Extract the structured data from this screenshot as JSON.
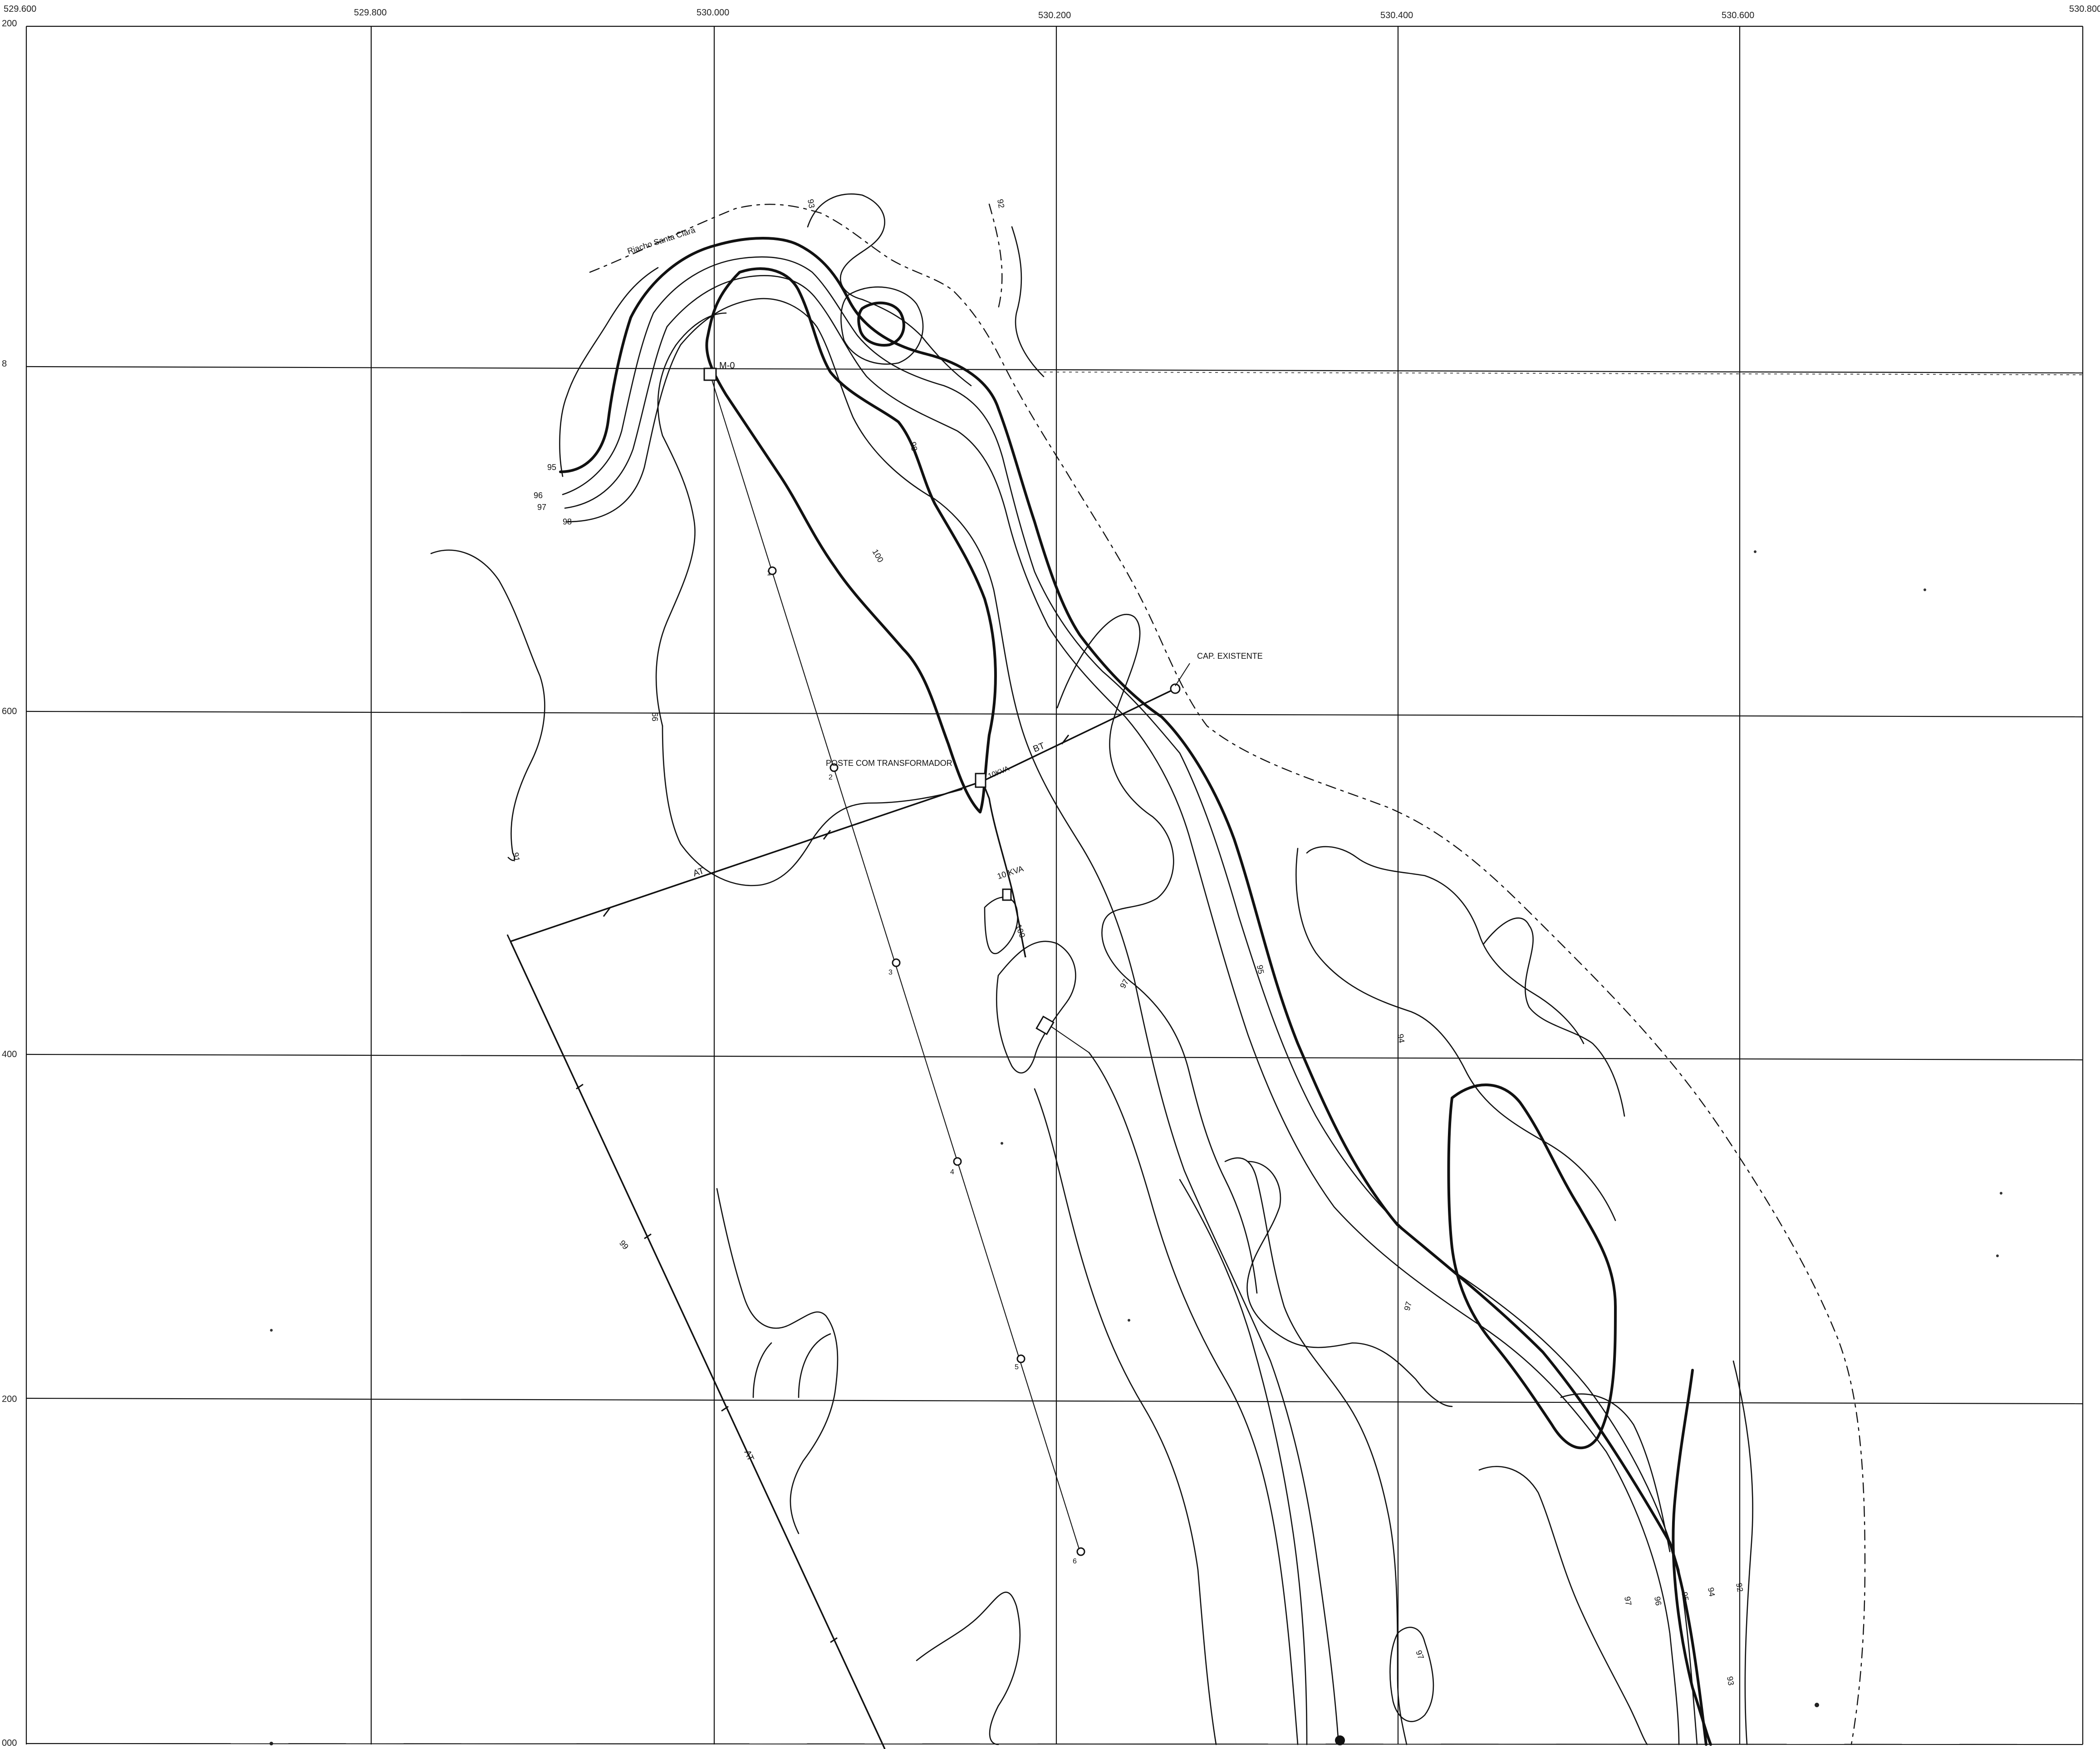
{
  "grid": {
    "x_labels": [
      "529.600",
      "529.800",
      "530.000",
      "530.200",
      "530.400",
      "530.600",
      "530.800"
    ],
    "y_labels": [
      "200",
      "8",
      "600",
      "400",
      "200",
      "000"
    ]
  },
  "stream": {
    "name": "Riacho Santa Clara"
  },
  "features": {
    "marco": "M-0",
    "existing": "CAP. EXISTENTE",
    "transformer": "POSTE COM TRANSFORMADOR",
    "kva_small": "10KVA",
    "kva_label": "10 KVA",
    "bt_label": "BT",
    "at_label": "AT"
  },
  "poles": [
    "1",
    "2",
    "3",
    "4",
    "5",
    "6"
  ],
  "contours": [
    "93",
    "95",
    "96",
    "97",
    "98",
    "99",
    "100",
    "94",
    "92",
    "91"
  ],
  "colors": {
    "ink": "#111111",
    "paper": "#ffffff"
  }
}
